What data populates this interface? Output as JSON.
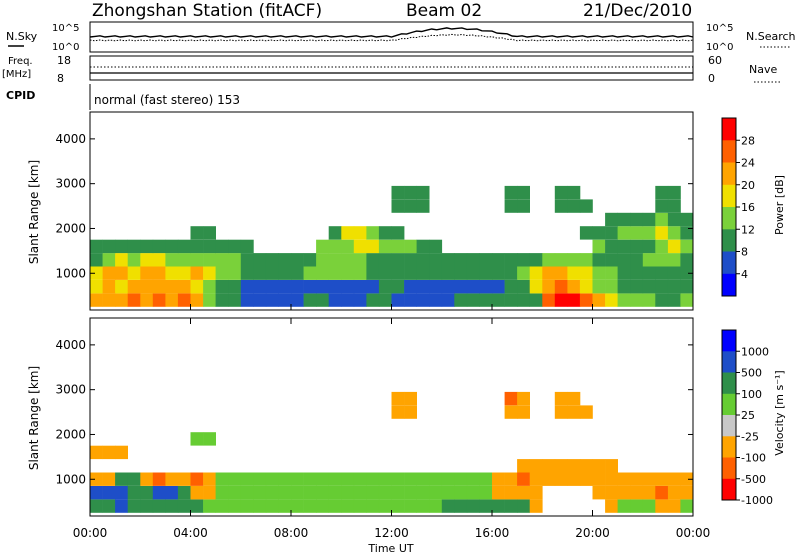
{
  "header": {
    "title": "Zhongshan Station (fitACF)",
    "beam": "Beam 02",
    "date": "21/Dec/2010"
  },
  "top_panels": {
    "nsky_label": "N.Sky",
    "nsearch_label": "N.Search",
    "count_ticks": [
      "10^5",
      "10^0"
    ],
    "freq_label": "Freq.",
    "freq_unit": "[MHz]",
    "freq_ticks": [
      "18",
      "8"
    ],
    "nave_label": "Nave",
    "nave_ticks": [
      "60",
      "0"
    ],
    "cpid_label": "CPID",
    "cpid_value": "normal (fast stereo) 153"
  },
  "power_colorbar": {
    "title": "Power [dB]",
    "ticks": [
      "28",
      "24",
      "20",
      "16",
      "12",
      "8",
      "4"
    ],
    "colors": [
      "#0000ff",
      "#1e4ec8",
      "#2f8f4a",
      "#7ad13a",
      "#f0e000",
      "#ffa400",
      "#ff6000",
      "#ff0000"
    ]
  },
  "velocity_colorbar": {
    "title": "Velocity [m s⁻¹]",
    "ticks": [
      "1000",
      "500",
      "100",
      "25",
      "-25",
      "-100",
      "-500",
      "-1000"
    ],
    "colors": [
      "#0000ff",
      "#1e4ec8",
      "#2f8f4a",
      "#66cc33",
      "#c8c8c8",
      "#ffa400",
      "#ff6000",
      "#ff0000"
    ]
  },
  "chart_data": [
    {
      "type": "heatmap",
      "quantity": "Power",
      "ylabel": "Slant Range [km]",
      "xlabel": "",
      "ylim": [
        180,
        4600
      ],
      "yticks": [
        1000,
        2000,
        3000,
        4000
      ],
      "xlim": [
        0,
        24
      ],
      "x": [
        0.0,
        0.5,
        1.0,
        1.5,
        2.0,
        2.5,
        3.0,
        3.5,
        4.0,
        4.5,
        5.0,
        5.5,
        6.0,
        6.5,
        7.0,
        7.5,
        8.0,
        8.5,
        9.0,
        9.5,
        10.0,
        10.5,
        11.0,
        11.5,
        12.0,
        12.5,
        13.0,
        13.5,
        14.0,
        14.5,
        15.0,
        15.5,
        16.0,
        16.5,
        17.0,
        17.5,
        18.0,
        18.5,
        19.0,
        19.5,
        20.0,
        20.5,
        21.0,
        21.5,
        22.0,
        22.5,
        23.0,
        23.5
      ],
      "y": [
        400,
        700,
        1000,
        1300,
        1600,
        1900,
        2200,
        2500,
        2800,
        3100
      ],
      "values": [
        [
          20,
          22,
          20,
          24,
          22,
          26,
          22,
          24,
          20,
          12,
          8,
          8,
          6,
          6,
          6,
          6,
          6,
          8,
          8,
          6,
          6,
          6,
          8,
          8,
          6,
          6,
          4,
          4,
          6,
          8,
          8,
          8,
          8,
          8,
          8,
          8,
          24,
          28,
          28,
          24,
          20,
          16,
          12,
          12,
          12,
          8,
          8,
          12
        ],
        [
          18,
          20,
          18,
          22,
          20,
          22,
          20,
          22,
          16,
          12,
          8,
          8,
          6,
          6,
          6,
          6,
          4,
          4,
          4,
          4,
          6,
          6,
          6,
          8,
          8,
          6,
          6,
          4,
          4,
          4,
          4,
          6,
          6,
          8,
          8,
          16,
          20,
          24,
          20,
          18,
          12,
          12,
          8,
          8,
          8,
          8,
          8,
          8
        ],
        [
          16,
          20,
          20,
          16,
          20,
          20,
          16,
          18,
          20,
          16,
          12,
          12,
          8,
          8,
          8,
          8,
          8,
          12,
          12,
          12,
          12,
          12,
          8,
          8,
          8,
          8,
          8,
          8,
          8,
          8,
          8,
          8,
          8,
          8,
          12,
          16,
          20,
          20,
          16,
          16,
          12,
          12,
          8,
          8,
          8,
          8,
          8,
          8
        ],
        [
          8,
          12,
          16,
          12,
          16,
          16,
          12,
          12,
          12,
          12,
          12,
          12,
          8,
          8,
          8,
          8,
          8,
          8,
          12,
          12,
          12,
          12,
          8,
          8,
          8,
          8,
          8,
          8,
          8,
          8,
          8,
          8,
          8,
          8,
          8,
          8,
          12,
          12,
          12,
          12,
          8,
          8,
          8,
          8,
          12,
          12,
          12,
          8
        ],
        [
          8,
          8,
          8,
          8,
          8,
          8,
          8,
          8,
          8,
          8,
          8,
          8,
          8,
          0,
          0,
          0,
          0,
          0,
          12,
          12,
          12,
          16,
          16,
          12,
          12,
          12,
          8,
          8,
          0,
          0,
          0,
          0,
          0,
          0,
          0,
          0,
          0,
          0,
          0,
          0,
          12,
          8,
          8,
          8,
          8,
          12,
          16,
          12
        ],
        [
          0,
          0,
          0,
          0,
          0,
          0,
          0,
          0,
          8,
          8,
          0,
          0,
          0,
          0,
          0,
          0,
          0,
          0,
          0,
          8,
          16,
          16,
          12,
          8,
          8,
          0,
          0,
          0,
          0,
          0,
          0,
          0,
          0,
          0,
          0,
          0,
          0,
          0,
          0,
          8,
          8,
          8,
          12,
          12,
          12,
          16,
          12,
          8
        ],
        [
          0,
          0,
          0,
          0,
          0,
          0,
          0,
          0,
          0,
          0,
          0,
          0,
          0,
          0,
          0,
          0,
          0,
          0,
          0,
          0,
          0,
          0,
          0,
          0,
          0,
          0,
          0,
          0,
          0,
          0,
          0,
          0,
          0,
          0,
          0,
          0,
          0,
          0,
          0,
          0,
          0,
          8,
          8,
          8,
          8,
          12,
          8,
          8
        ],
        [
          0,
          0,
          0,
          0,
          0,
          0,
          0,
          0,
          0,
          0,
          0,
          0,
          0,
          0,
          0,
          0,
          0,
          0,
          0,
          0,
          0,
          0,
          0,
          0,
          8,
          8,
          8,
          0,
          0,
          0,
          0,
          0,
          0,
          8,
          8,
          0,
          0,
          8,
          8,
          8,
          0,
          0,
          0,
          0,
          0,
          8,
          8,
          0
        ],
        [
          0,
          0,
          0,
          0,
          0,
          0,
          0,
          0,
          0,
          0,
          0,
          0,
          0,
          0,
          0,
          0,
          0,
          0,
          0,
          0,
          0,
          0,
          0,
          0,
          8,
          8,
          8,
          0,
          0,
          0,
          0,
          0,
          0,
          8,
          8,
          0,
          0,
          8,
          8,
          0,
          0,
          0,
          0,
          0,
          0,
          8,
          8,
          0
        ],
        [
          0,
          0,
          0,
          0,
          0,
          0,
          0,
          0,
          0,
          0,
          0,
          0,
          0,
          0,
          0,
          0,
          0,
          0,
          0,
          0,
          0,
          0,
          0,
          0,
          0,
          0,
          0,
          0,
          0,
          0,
          0,
          0,
          0,
          0,
          0,
          0,
          0,
          0,
          0,
          0,
          0,
          0,
          0,
          0,
          0,
          0,
          0,
          0
        ]
      ]
    },
    {
      "type": "heatmap",
      "quantity": "Velocity",
      "ylabel": "Slant Range [km]",
      "xlabel": "Time UT",
      "ylim": [
        180,
        4600
      ],
      "yticks": [
        1000,
        2000,
        3000,
        4000
      ],
      "xlim": [
        0,
        24
      ],
      "xticks": [
        "00:00",
        "04:00",
        "08:00",
        "12:00",
        "16:00",
        "20:00",
        "00:00"
      ],
      "x": [
        0.0,
        0.5,
        1.0,
        1.5,
        2.0,
        2.5,
        3.0,
        3.5,
        4.0,
        4.5,
        5.0,
        5.5,
        6.0,
        6.5,
        7.0,
        7.5,
        8.0,
        8.5,
        9.0,
        9.5,
        10.0,
        10.5,
        11.0,
        11.5,
        12.0,
        12.5,
        13.0,
        13.5,
        14.0,
        14.5,
        15.0,
        15.5,
        16.0,
        16.5,
        17.0,
        17.5,
        18.0,
        18.5,
        19.0,
        19.5,
        20.0,
        20.5,
        21.0,
        21.5,
        22.0,
        22.5,
        23.0,
        23.5
      ],
      "y": [
        400,
        700,
        1000,
        1300,
        1600,
        1900,
        2200,
        2500,
        2800,
        3100
      ],
      "values": [
        [
          100,
          100,
          500,
          100,
          100,
          100,
          100,
          100,
          100,
          25,
          25,
          25,
          25,
          25,
          25,
          25,
          25,
          25,
          25,
          25,
          25,
          25,
          25,
          25,
          25,
          25,
          25,
          25,
          100,
          100,
          100,
          100,
          100,
          100,
          100,
          -100,
          0,
          0,
          0,
          0,
          0,
          -100,
          25,
          25,
          25,
          -100,
          -100,
          25
        ],
        [
          500,
          500,
          500,
          100,
          100,
          500,
          500,
          100,
          -100,
          -100,
          25,
          25,
          25,
          25,
          25,
          25,
          25,
          25,
          25,
          25,
          25,
          25,
          25,
          25,
          25,
          25,
          25,
          25,
          25,
          25,
          25,
          25,
          -100,
          -100,
          -100,
          -100,
          0,
          0,
          0,
          0,
          -100,
          -100,
          -100,
          -100,
          -100,
          -500,
          -100,
          -100
        ],
        [
          -100,
          -100,
          100,
          100,
          -100,
          -500,
          -100,
          -100,
          -500,
          -100,
          25,
          25,
          25,
          25,
          25,
          25,
          25,
          25,
          25,
          25,
          25,
          25,
          25,
          25,
          25,
          25,
          25,
          25,
          25,
          25,
          25,
          25,
          -100,
          -100,
          -500,
          -100,
          -100,
          -100,
          -100,
          -100,
          -100,
          -100,
          -100,
          -100,
          -100,
          -100,
          -100,
          -100
        ],
        [
          0,
          0,
          0,
          0,
          0,
          0,
          0,
          0,
          0,
          0,
          0,
          0,
          0,
          0,
          0,
          0,
          0,
          0,
          0,
          0,
          0,
          0,
          0,
          0,
          0,
          0,
          0,
          0,
          0,
          0,
          0,
          0,
          0,
          0,
          -100,
          -100,
          -100,
          -100,
          -100,
          -100,
          -100,
          -100,
          0,
          0,
          0,
          0,
          0,
          0
        ],
        [
          -100,
          -100,
          -100,
          0,
          0,
          0,
          0,
          0,
          0,
          0,
          0,
          0,
          0,
          0,
          0,
          0,
          0,
          0,
          0,
          0,
          0,
          0,
          0,
          0,
          0,
          0,
          0,
          0,
          0,
          0,
          0,
          0,
          0,
          0,
          0,
          0,
          0,
          0,
          0,
          0,
          0,
          0,
          0,
          0,
          0,
          0,
          0,
          0
        ],
        [
          0,
          0,
          0,
          0,
          0,
          0,
          0,
          0,
          25,
          25,
          0,
          0,
          0,
          0,
          0,
          0,
          0,
          0,
          0,
          0,
          0,
          0,
          0,
          0,
          0,
          0,
          0,
          0,
          0,
          0,
          0,
          0,
          0,
          0,
          0,
          0,
          0,
          0,
          0,
          0,
          0,
          0,
          0,
          0,
          0,
          0,
          0,
          0
        ],
        [
          0,
          0,
          0,
          0,
          0,
          0,
          0,
          0,
          0,
          0,
          0,
          0,
          0,
          0,
          0,
          0,
          0,
          0,
          0,
          0,
          0,
          0,
          0,
          0,
          0,
          0,
          0,
          0,
          0,
          0,
          0,
          0,
          0,
          0,
          0,
          0,
          0,
          0,
          0,
          0,
          0,
          0,
          0,
          0,
          0,
          0,
          0,
          0
        ],
        [
          0,
          0,
          0,
          0,
          0,
          0,
          0,
          0,
          0,
          0,
          0,
          0,
          0,
          0,
          0,
          0,
          0,
          0,
          0,
          0,
          0,
          0,
          0,
          0,
          -100,
          -100,
          0,
          0,
          0,
          0,
          0,
          0,
          0,
          -100,
          -100,
          0,
          0,
          -100,
          -100,
          -100,
          0,
          0,
          0,
          0,
          0,
          0,
          0,
          0
        ],
        [
          0,
          0,
          0,
          0,
          0,
          0,
          0,
          0,
          0,
          0,
          0,
          0,
          0,
          0,
          0,
          0,
          0,
          0,
          0,
          0,
          0,
          0,
          0,
          0,
          -100,
          -100,
          0,
          0,
          0,
          0,
          0,
          0,
          0,
          -500,
          -100,
          0,
          0,
          -100,
          -100,
          0,
          0,
          0,
          0,
          0,
          0,
          0,
          0,
          0
        ],
        [
          0,
          0,
          0,
          0,
          0,
          0,
          0,
          0,
          0,
          0,
          0,
          0,
          0,
          0,
          0,
          0,
          0,
          0,
          0,
          0,
          0,
          0,
          0,
          0,
          0,
          0,
          0,
          0,
          0,
          0,
          0,
          0,
          0,
          0,
          0,
          0,
          0,
          0,
          0,
          0,
          0,
          0,
          0,
          0,
          0,
          0,
          0,
          0
        ]
      ]
    }
  ]
}
